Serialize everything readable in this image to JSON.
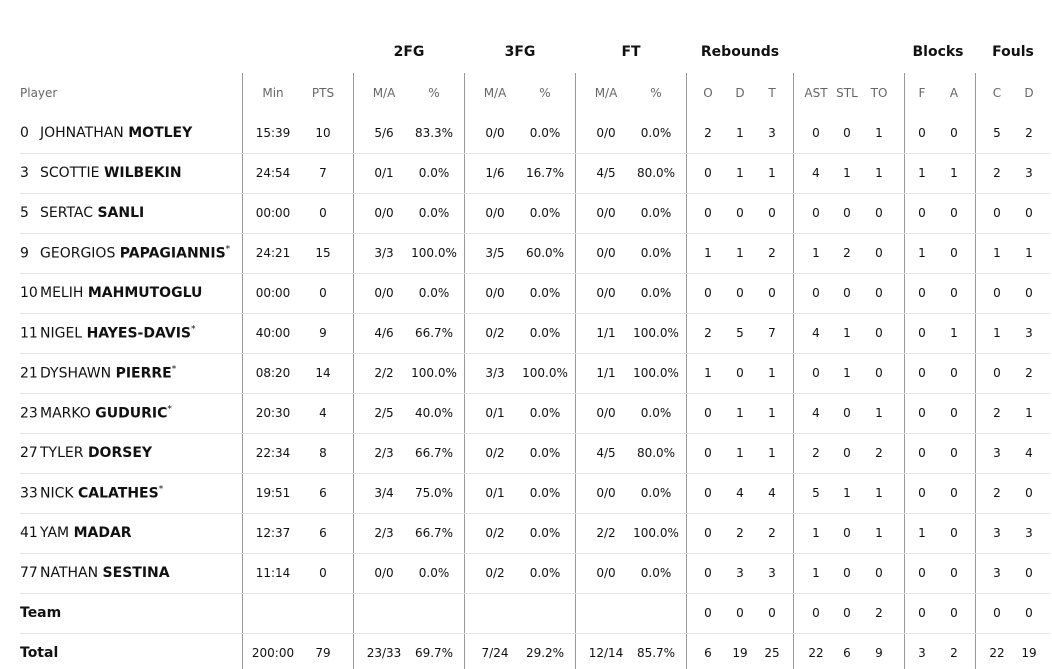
{
  "table": {
    "groups": [
      {
        "label": "2FG",
        "span": [
          3,
          4
        ]
      },
      {
        "label": "3FG",
        "span": [
          5,
          6
        ]
      },
      {
        "label": "FT",
        "span": [
          7,
          8
        ]
      },
      {
        "label": "Rebounds",
        "span": [
          9,
          11
        ]
      },
      {
        "label": "Blocks",
        "span": [
          15,
          16
        ]
      },
      {
        "label": "Fouls",
        "span": [
          17,
          18
        ]
      }
    ],
    "columns": [
      "Player",
      "Min",
      "PTS",
      "M/A",
      "%",
      "M/A",
      "%",
      "M/A",
      "%",
      "O",
      "D",
      "T",
      "AST",
      "STL",
      "TO",
      "F",
      "A",
      "C",
      "D"
    ],
    "players": [
      {
        "number": "0",
        "first_name": "JOHNATHAN",
        "last_name": "MOTLEY",
        "stats": [
          "15:39",
          "10",
          "5/6",
          "83.3%",
          "0/0",
          "0.0%",
          "0/0",
          "0.0%",
          "2",
          "1",
          "3",
          "0",
          "0",
          "1",
          "0",
          "0",
          "5",
          "2"
        ]
      },
      {
        "number": "3",
        "first_name": "SCOTTIE",
        "last_name": "WILBEKIN",
        "stats": [
          "24:54",
          "7",
          "0/1",
          "0.0%",
          "1/6",
          "16.7%",
          "4/5",
          "80.0%",
          "0",
          "1",
          "1",
          "4",
          "1",
          "1",
          "1",
          "1",
          "2",
          "3"
        ]
      },
      {
        "number": "5",
        "first_name": "SERTAC",
        "last_name": "SANLI",
        "stats": [
          "00:00",
          "0",
          "0/0",
          "0.0%",
          "0/0",
          "0.0%",
          "0/0",
          "0.0%",
          "0",
          "0",
          "0",
          "0",
          "0",
          "0",
          "0",
          "0",
          "0",
          "0"
        ]
      },
      {
        "number": "9",
        "first_name": "GEORGIOS",
        "last_name": "PAPAGIANNIS",
        "marker": "*",
        "stats": [
          "24:21",
          "15",
          "3/3",
          "100.0%",
          "3/5",
          "60.0%",
          "0/0",
          "0.0%",
          "1",
          "1",
          "2",
          "1",
          "2",
          "0",
          "1",
          "0",
          "1",
          "1"
        ]
      },
      {
        "number": "10",
        "first_name": "MELIH",
        "last_name": "MAHMUTOGLU",
        "stats": [
          "00:00",
          "0",
          "0/0",
          "0.0%",
          "0/0",
          "0.0%",
          "0/0",
          "0.0%",
          "0",
          "0",
          "0",
          "0",
          "0",
          "0",
          "0",
          "0",
          "0",
          "0"
        ]
      },
      {
        "number": "11",
        "first_name": "NIGEL",
        "last_name": "HAYES-DAVIS",
        "marker": "*",
        "stats": [
          "40:00",
          "9",
          "4/6",
          "66.7%",
          "0/2",
          "0.0%",
          "1/1",
          "100.0%",
          "2",
          "5",
          "7",
          "4",
          "1",
          "0",
          "0",
          "1",
          "1",
          "3"
        ]
      },
      {
        "number": "21",
        "first_name": "DYSHAWN",
        "last_name": "PIERRE",
        "marker": "*",
        "stats": [
          "08:20",
          "14",
          "2/2",
          "100.0%",
          "3/3",
          "100.0%",
          "1/1",
          "100.0%",
          "1",
          "0",
          "1",
          "0",
          "1",
          "0",
          "0",
          "0",
          "0",
          "2"
        ]
      },
      {
        "number": "23",
        "first_name": "MARKO",
        "last_name": "GUDURIC",
        "marker": "*",
        "stats": [
          "20:30",
          "4",
          "2/5",
          "40.0%",
          "0/1",
          "0.0%",
          "0/0",
          "0.0%",
          "0",
          "1",
          "1",
          "4",
          "0",
          "1",
          "0",
          "0",
          "2",
          "1"
        ]
      },
      {
        "number": "27",
        "first_name": "TYLER",
        "last_name": "DORSEY",
        "stats": [
          "22:34",
          "8",
          "2/3",
          "66.7%",
          "0/2",
          "0.0%",
          "4/5",
          "80.0%",
          "0",
          "1",
          "1",
          "2",
          "0",
          "2",
          "0",
          "0",
          "3",
          "4"
        ]
      },
      {
        "number": "33",
        "first_name": "NICK",
        "last_name": "CALATHES",
        "marker": "*",
        "stats": [
          "19:51",
          "6",
          "3/4",
          "75.0%",
          "0/1",
          "0.0%",
          "0/0",
          "0.0%",
          "0",
          "4",
          "4",
          "5",
          "1",
          "1",
          "0",
          "0",
          "2",
          "0"
        ]
      },
      {
        "number": "41",
        "first_name": "YAM",
        "last_name": "MADAR",
        "stats": [
          "12:37",
          "6",
          "2/3",
          "66.7%",
          "0/2",
          "0.0%",
          "2/2",
          "100.0%",
          "0",
          "2",
          "2",
          "1",
          "0",
          "1",
          "1",
          "0",
          "3",
          "3"
        ]
      },
      {
        "number": "77",
        "first_name": "NATHAN",
        "last_name": "SESTINA",
        "stats": [
          "11:14",
          "0",
          "0/0",
          "0.0%",
          "0/2",
          "0.0%",
          "0/0",
          "0.0%",
          "0",
          "3",
          "3",
          "1",
          "0",
          "0",
          "0",
          "0",
          "3",
          "0"
        ]
      }
    ],
    "team": {
      "label": "Team",
      "stats": [
        null,
        null,
        null,
        null,
        null,
        null,
        null,
        null,
        "0",
        "0",
        "0",
        "0",
        "0",
        "2",
        "0",
        "0",
        "0",
        "0"
      ]
    },
    "total": {
      "label": "Total",
      "stats": [
        "200:00",
        "79",
        "23/33",
        "69.7%",
        "7/24",
        "29.2%",
        "12/14",
        "85.7%",
        "6",
        "19",
        "25",
        "22",
        "6",
        "9",
        "3",
        "2",
        "22",
        "19"
      ]
    }
  }
}
